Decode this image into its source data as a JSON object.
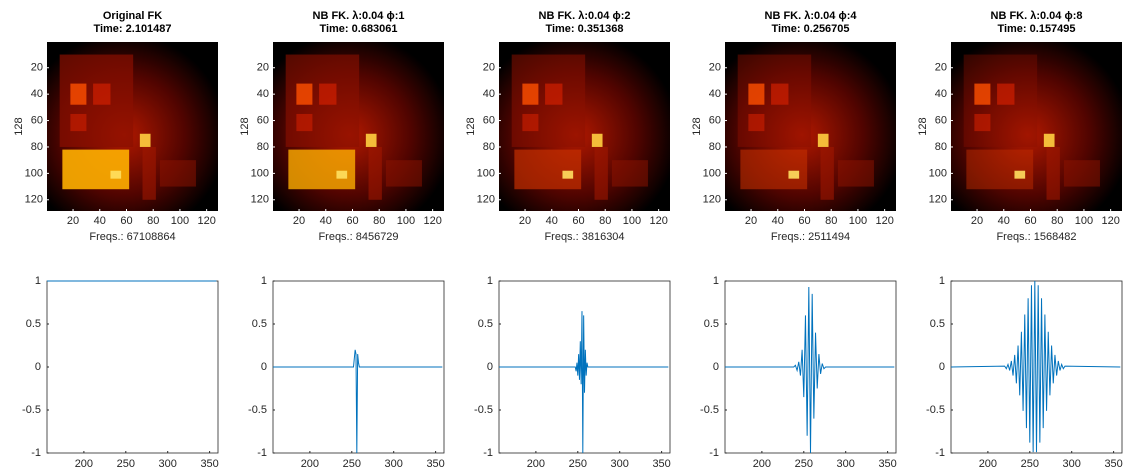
{
  "chart_data": [
    {
      "type": "image",
      "title": [
        "Original FK",
        "Time: 2.101487"
      ],
      "xlabel": "Freqs.: 67108864",
      "ylabel": "128",
      "xlim": [
        0.5,
        128.5
      ],
      "ylim": [
        0.5,
        128.5
      ],
      "xticks": [
        20,
        40,
        60,
        80,
        100,
        120
      ],
      "yticks": [
        20,
        40,
        60,
        80,
        100,
        120
      ]
    },
    {
      "type": "image",
      "title": [
        "NB FK. λ:0.04 ϕ:1",
        "Time: 0.683061"
      ],
      "xlabel": "Freqs.: 8456729",
      "ylabel": "128",
      "xlim": [
        0.5,
        128.5
      ],
      "ylim": [
        0.5,
        128.5
      ],
      "xticks": [
        20,
        40,
        60,
        80,
        100,
        120
      ],
      "yticks": [
        20,
        40,
        60,
        80,
        100,
        120
      ]
    },
    {
      "type": "image",
      "title": [
        "NB FK. λ:0.04 ϕ:2",
        "Time: 0.351368"
      ],
      "xlabel": "Freqs.: 3816304",
      "ylabel": "128",
      "xlim": [
        0.5,
        128.5
      ],
      "ylim": [
        0.5,
        128.5
      ],
      "xticks": [
        20,
        40,
        60,
        80,
        100,
        120
      ],
      "yticks": [
        20,
        40,
        60,
        80,
        100,
        120
      ]
    },
    {
      "type": "image",
      "title": [
        "NB FK. λ:0.04 ϕ:4",
        "Time: 0.256705"
      ],
      "xlabel": "Freqs.: 2511494",
      "ylabel": "128",
      "xlim": [
        0.5,
        128.5
      ],
      "ylim": [
        0.5,
        128.5
      ],
      "xticks": [
        20,
        40,
        60,
        80,
        100,
        120
      ],
      "yticks": [
        20,
        40,
        60,
        80,
        100,
        120
      ]
    },
    {
      "type": "image",
      "title": [
        "NB FK. λ:0.04 ϕ:8",
        "Time: 0.157495"
      ],
      "xlabel": "Freqs.: 1568482",
      "ylabel": "128",
      "xlim": [
        0.5,
        128.5
      ],
      "ylim": [
        0.5,
        128.5
      ],
      "xticks": [
        20,
        40,
        60,
        80,
        100,
        120
      ],
      "yticks": [
        20,
        40,
        60,
        80,
        100,
        120
      ]
    },
    {
      "type": "line",
      "color": "#0072bd",
      "xlim": [
        156,
        360
      ],
      "ylim": [
        -1,
        1
      ],
      "xticks": [
        200,
        250,
        300,
        350
      ],
      "yticks": [
        -1,
        -0.5,
        0,
        0.5,
        1
      ],
      "x": [
        156,
        358
      ],
      "values": [
        1,
        1
      ]
    },
    {
      "type": "line",
      "color": "#0072bd",
      "xlim": [
        156,
        360
      ],
      "ylim": [
        -1,
        1
      ],
      "xticks": [
        200,
        250,
        300,
        350
      ],
      "yticks": [
        -1,
        -0.5,
        0,
        0.5,
        1
      ],
      "x": [
        156,
        252,
        253,
        254,
        255,
        256,
        257,
        258,
        259,
        358
      ],
      "values": [
        0,
        0,
        0.1,
        0.2,
        0.15,
        -1,
        0.15,
        0.05,
        0,
        0
      ]
    },
    {
      "type": "line",
      "color": "#0072bd",
      "xlim": [
        156,
        360
      ],
      "ylim": [
        -1,
        1
      ],
      "xticks": [
        200,
        250,
        300,
        350
      ],
      "yticks": [
        -1,
        -0.5,
        0,
        0.5,
        1
      ],
      "x": [
        156,
        247,
        248,
        249,
        250,
        251,
        252,
        253,
        254,
        255,
        256,
        257,
        258,
        259,
        260,
        261,
        262,
        263,
        358
      ],
      "values": [
        0,
        0,
        -0.05,
        0.05,
        -0.1,
        0.15,
        -0.15,
        0.3,
        -0.2,
        0.65,
        -1,
        0.6,
        -0.3,
        0.2,
        -0.1,
        0.05,
        0,
        0,
        0
      ]
    },
    {
      "type": "line",
      "color": "#0072bd",
      "xlim": [
        156,
        360
      ],
      "ylim": [
        -1,
        1
      ],
      "xticks": [
        200,
        250,
        300,
        350
      ],
      "yticks": [
        -1,
        -0.5,
        0,
        0.5,
        1
      ],
      "x": [
        156,
        238,
        240,
        242,
        244,
        246,
        248,
        250,
        252,
        254,
        256,
        258,
        260,
        262,
        264,
        266,
        268,
        270,
        272,
        274,
        276,
        358
      ],
      "values": [
        0,
        0,
        0.02,
        -0.04,
        0.06,
        -0.1,
        0.2,
        -0.35,
        0.6,
        -0.8,
        0.93,
        -1,
        0.85,
        -0.6,
        0.4,
        -0.25,
        0.15,
        -0.08,
        0.04,
        -0.02,
        0,
        0
      ]
    },
    {
      "type": "line",
      "color": "#0072bd",
      "xlim": [
        156,
        360
      ],
      "ylim": [
        -1,
        1
      ],
      "xticks": [
        200,
        250,
        300,
        350
      ],
      "yticks": [
        -1,
        -0.5,
        0,
        0.5,
        1
      ],
      "x": [
        156,
        220,
        222,
        224,
        226,
        228,
        230,
        232,
        234,
        236,
        238,
        240,
        242,
        244,
        246,
        248,
        250,
        252,
        254,
        256,
        258,
        260,
        262,
        264,
        266,
        268,
        270,
        272,
        274,
        276,
        278,
        280,
        282,
        284,
        286,
        288,
        290,
        292,
        358
      ],
      "values": [
        0,
        0.01,
        -0.02,
        0.03,
        -0.04,
        0.07,
        -0.1,
        0.14,
        -0.19,
        0.25,
        -0.33,
        0.41,
        -0.51,
        0.61,
        -0.71,
        0.8,
        -0.88,
        0.95,
        -0.99,
        1,
        -0.99,
        0.95,
        -0.88,
        0.8,
        -0.71,
        0.61,
        -0.51,
        0.41,
        -0.33,
        0.25,
        -0.19,
        0.14,
        -0.1,
        0.07,
        -0.04,
        0.03,
        -0.02,
        0.01,
        0
      ]
    }
  ]
}
